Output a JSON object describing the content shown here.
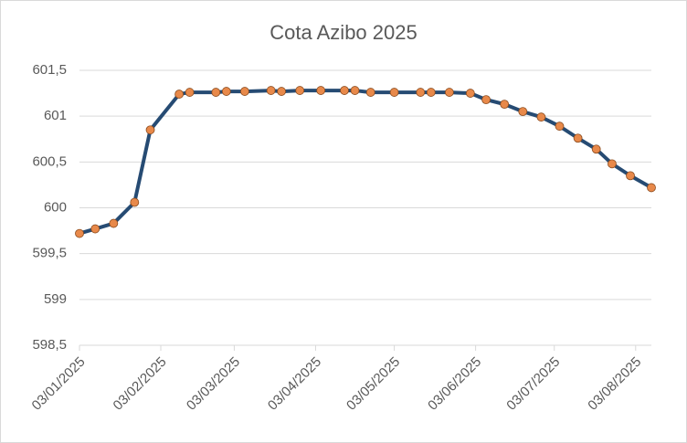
{
  "chart_data": {
    "type": "line",
    "title": "Cota Azibo 2025",
    "x": [
      "2025-01-03",
      "2025-01-09",
      "2025-01-16",
      "2025-01-24",
      "2025-01-30",
      "2025-02-10",
      "2025-02-14",
      "2025-02-24",
      "2025-02-28",
      "2025-03-07",
      "2025-03-17",
      "2025-03-21",
      "2025-03-28",
      "2025-04-05",
      "2025-04-14",
      "2025-04-18",
      "2025-04-24",
      "2025-05-03",
      "2025-05-13",
      "2025-05-17",
      "2025-05-24",
      "2025-06-01",
      "2025-06-07",
      "2025-06-14",
      "2025-06-21",
      "2025-06-28",
      "2025-07-05",
      "2025-07-12",
      "2025-07-19",
      "2025-07-25",
      "2025-08-01",
      "2025-08-09"
    ],
    "series": [
      {
        "color": "#264b73",
        "marker_color": "#e8894a",
        "values": [
          599.72,
          599.77,
          599.83,
          600.06,
          600.85,
          601.24,
          601.26,
          601.26,
          601.27,
          601.27,
          601.28,
          601.27,
          601.28,
          601.28,
          601.28,
          601.28,
          601.26,
          601.26,
          601.26,
          601.26,
          601.26,
          601.25,
          601.18,
          601.13,
          601.05,
          600.99,
          600.89,
          600.76,
          600.64,
          600.48,
          600.35,
          600.22
        ]
      }
    ],
    "xlim": [
      "2025-01-03",
      "2025-08-09"
    ],
    "xticks": [
      {
        "value": "2025-01-03",
        "label": "03/01/2025"
      },
      {
        "value": "2025-02-03",
        "label": "03/02/2025"
      },
      {
        "value": "2025-03-03",
        "label": "03/03/2025"
      },
      {
        "value": "2025-04-03",
        "label": "03/04/2025"
      },
      {
        "value": "2025-05-03",
        "label": "03/05/2025"
      },
      {
        "value": "2025-06-03",
        "label": "03/06/2025"
      },
      {
        "value": "2025-07-03",
        "label": "03/07/2025"
      },
      {
        "value": "2025-08-03",
        "label": "03/08/2025"
      }
    ],
    "ylim": [
      598.5,
      601.5
    ],
    "yticks": [
      {
        "value": 598.5,
        "label": "598,5"
      },
      599,
      {
        "value": 599.5,
        "label": "599,5"
      },
      600,
      {
        "value": 600.5,
        "label": "600,5"
      },
      601,
      {
        "value": 601.5,
        "label": "601,5"
      }
    ],
    "grid": true
  }
}
